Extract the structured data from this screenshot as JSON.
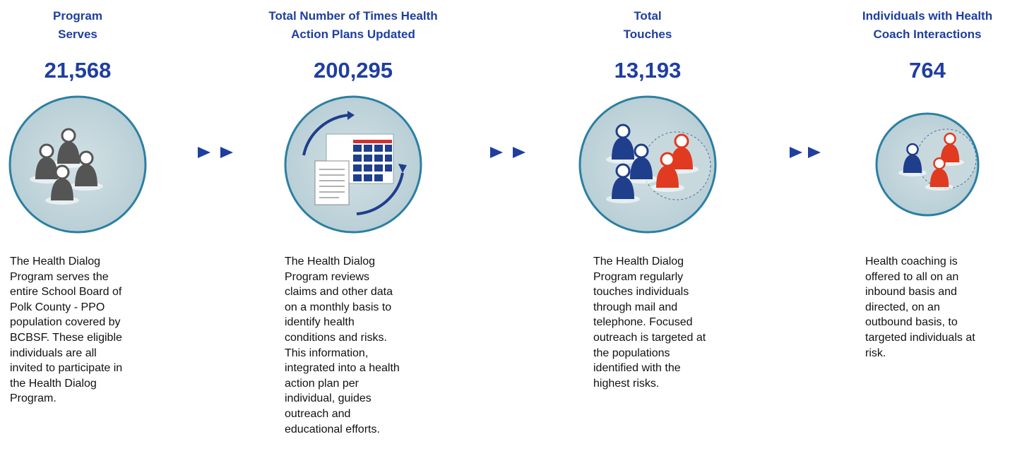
{
  "steps": [
    {
      "title": [
        "Program",
        "Serves"
      ],
      "number": "21,568",
      "description": [
        "The Health Dialog",
        "Program serves the",
        "entire School Board of",
        "Polk County - PPO",
        "population covered by",
        "BCBSF.  These eligible",
        "individuals are all",
        "invited to participate in",
        "the Health Dialog",
        "Program."
      ]
    },
    {
      "title": [
        "Total Number of Times Health",
        "Action Plans Updated"
      ],
      "number": "200,295",
      "description": [
        "The Health Dialog",
        "Program reviews",
        "claims and other data",
        "on a monthly basis to",
        "identify health",
        "conditions and risks.",
        "This information,",
        "integrated into a health",
        "action plan per",
        "individual, guides",
        "outreach and",
        "educational efforts."
      ]
    },
    {
      "title": [
        "Total",
        "Touches"
      ],
      "number": "13,193",
      "description": [
        "The Health Dialog",
        "Program regularly",
        "touches individuals",
        "through mail and",
        "telephone.  Focused",
        "outreach is targeted at",
        "the populations",
        "identified with the",
        "highest risks."
      ]
    },
    {
      "title": [
        "Individuals with Health",
        "Coach Interactions"
      ],
      "number": "764",
      "description": [
        "Health coaching is",
        "offered to all on an",
        "inbound basis and",
        "directed, on an",
        "outbound basis, to",
        "targeted individuals at",
        "risk."
      ]
    }
  ]
}
